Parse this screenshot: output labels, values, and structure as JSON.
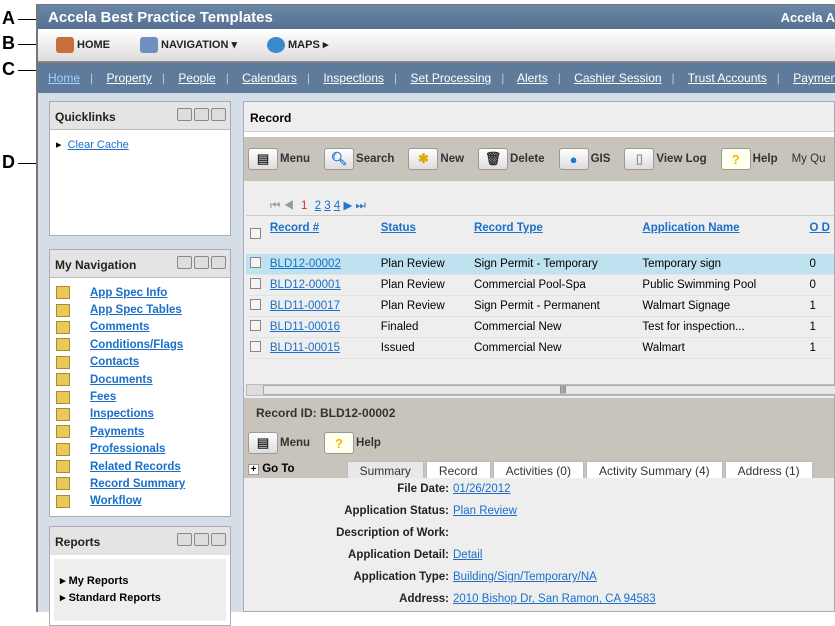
{
  "callouts": [
    "A",
    "B",
    "C",
    "D"
  ],
  "app": {
    "title": "Accela Best Practice Templates",
    "title_right": "Accela A"
  },
  "toolbar": {
    "home": "HOME",
    "navigation": "NAVIGATION",
    "maps": "MAPS"
  },
  "nav": [
    "Home",
    "Property",
    "People",
    "Calendars",
    "Inspections",
    "Set Processing",
    "Alerts",
    "Cashier Session",
    "Trust Accounts",
    "Payment"
  ],
  "quicklinks": {
    "title": "Quicklinks",
    "items": [
      "Clear Cache"
    ]
  },
  "my_navigation": {
    "title": "My Navigation",
    "items": [
      "App Spec Info",
      "App Spec Tables",
      "Comments",
      "Conditions/Flags",
      "Contacts",
      "Documents",
      "Fees",
      "Inspections",
      "Payments",
      "Professionals",
      "Related Records",
      "Record Summary",
      "Workflow"
    ]
  },
  "reports": {
    "title": "Reports",
    "items": [
      "My Reports",
      "Standard Reports"
    ]
  },
  "record": {
    "title": "Record",
    "toolbar": [
      "Menu",
      "Search",
      "New",
      "Delete",
      "GIS",
      "View Log",
      "Help",
      "My Qu"
    ],
    "pagination": {
      "current": "1",
      "pages": [
        "2",
        "3",
        "4"
      ]
    },
    "columns": [
      "Record #",
      "Status",
      "Record Type",
      "Application Name",
      "O D"
    ],
    "rows": [
      [
        "BLD12-00002",
        "Plan Review",
        "Sign Permit - Temporary",
        "Temporary sign",
        "0"
      ],
      [
        "BLD12-00001",
        "Plan Review",
        "Commercial Pool-Spa",
        "Public Swimming Pool",
        "0"
      ],
      [
        "BLD11-00017",
        "Plan Review",
        "Sign Permit - Permanent",
        "Walmart Signage",
        "1"
      ],
      [
        "BLD11-00016",
        "Finaled",
        "Commercial New",
        "Test for inspection...",
        "1"
      ],
      [
        "BLD11-00015",
        "Issued",
        "Commercial New",
        "Walmart",
        "1"
      ]
    ]
  },
  "detail": {
    "record_id": "Record ID: BLD12-00002",
    "menu": "Menu",
    "help": "Help",
    "goto": "Go To",
    "tabs": [
      "Summary",
      "Record",
      "Activities (0)",
      "Activity Summary (4)",
      "Address (1)"
    ],
    "fields": [
      {
        "label": "File Date:",
        "value": "01/26/2012",
        "link": true
      },
      {
        "label": "Application Status:",
        "value": "Plan Review",
        "link": true
      },
      {
        "label": "Description of Work:",
        "value": "",
        "link": false
      },
      {
        "label": "Application Detail:",
        "value": "Detail",
        "link": true
      },
      {
        "label": "Application Type:",
        "value": "Building/Sign/Temporary/NA",
        "link": true
      },
      {
        "label": "Address:",
        "value": "2010 Bishop Dr, San Ramon, CA 94583",
        "link": true
      }
    ]
  }
}
